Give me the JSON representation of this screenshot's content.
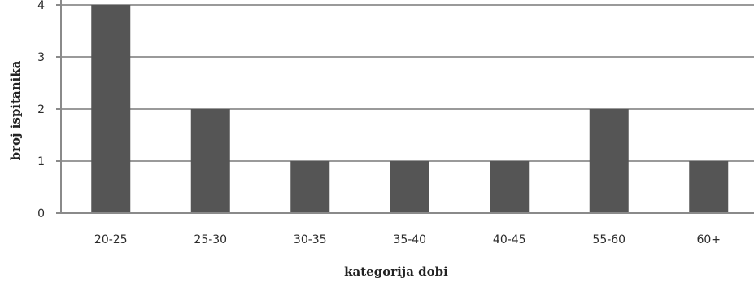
{
  "chart_data": {
    "type": "bar",
    "categories": [
      "20-25",
      "25-30",
      "30-35",
      "35-40",
      "40-45",
      "55-60",
      "60+"
    ],
    "values": [
      4,
      2,
      1,
      1,
      1,
      2,
      1
    ],
    "xlabel": "kategorija dobi",
    "ylabel": "broj ispitanika",
    "ylim": [
      0,
      4
    ],
    "yticks": [
      0,
      1,
      2,
      3,
      4
    ],
    "grid": true,
    "colors": {
      "bar": "#555555",
      "grid": "#9a9a9a"
    }
  }
}
